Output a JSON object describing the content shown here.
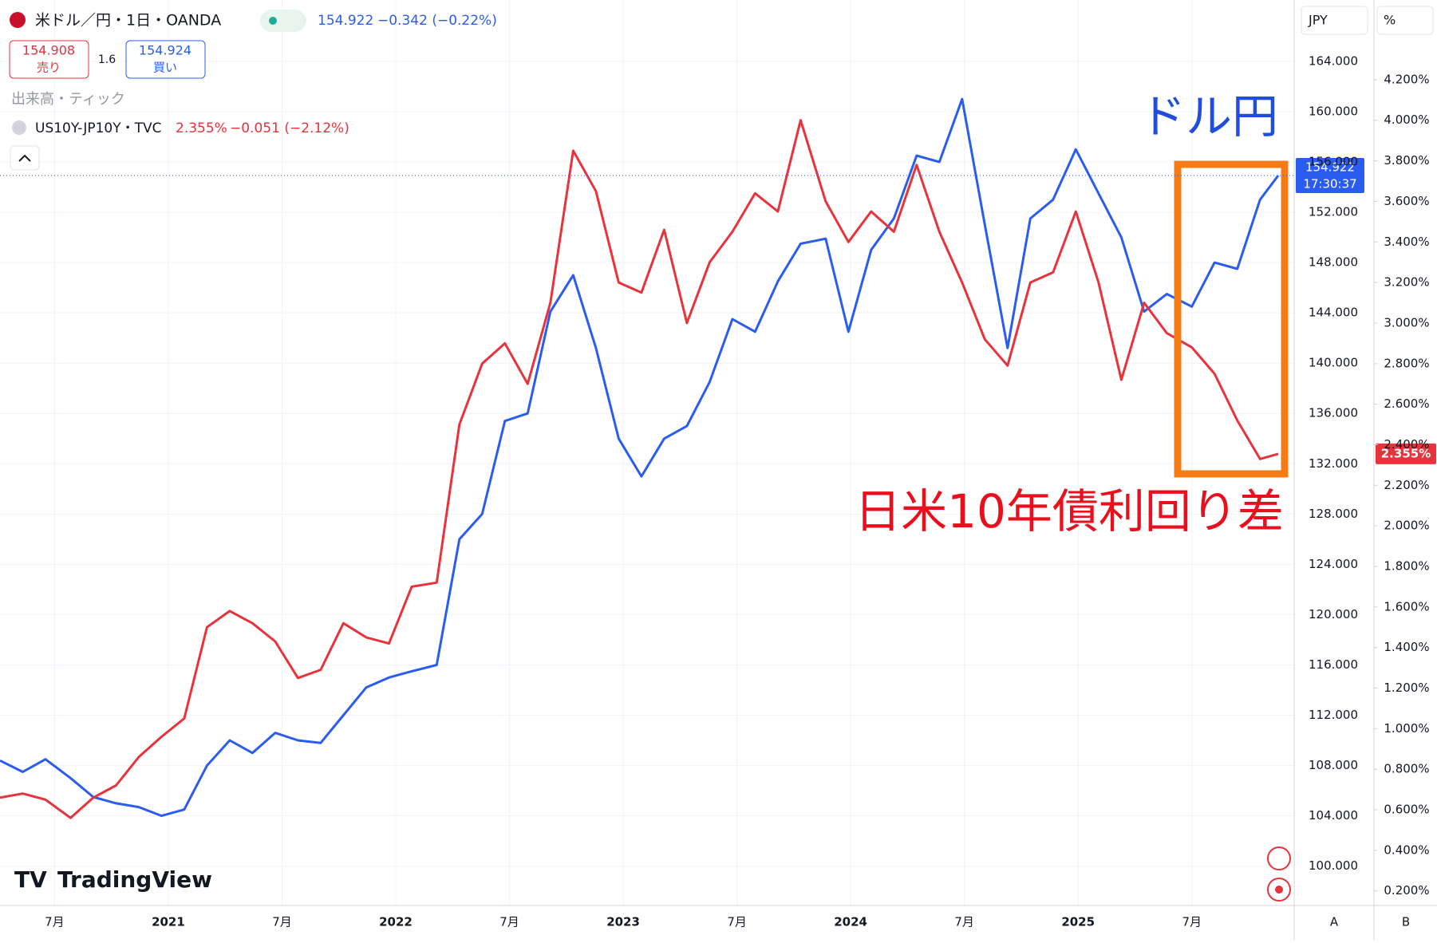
{
  "chart_data": {
    "type": "line",
    "series": [
      {
        "name": "米ドル／円・1日・OANDA",
        "color": "#2b5cf0",
        "axis": "y",
        "values": [
          108.4,
          107.5,
          108.5,
          107,
          105.5,
          105,
          104.7,
          104,
          104.5,
          108,
          110,
          109,
          110.6,
          110,
          109.8,
          112,
          114.2,
          115,
          115.5,
          116,
          126,
          128,
          135.4,
          136,
          144.1,
          147,
          141.2,
          134,
          131,
          134,
          135,
          138.5,
          143.5,
          142.5,
          146.5,
          149.5,
          149.9,
          142.5,
          149,
          151.5,
          156.5,
          156,
          161,
          151,
          141.2,
          151.5,
          153,
          157,
          153.5,
          150,
          144.1,
          145.5,
          144.5,
          148,
          147.5,
          153,
          154.922
        ]
      },
      {
        "name": "US10Y-JP10Y・TVC",
        "color": "#e8323c",
        "axis": "y2",
        "values": [
          0.66,
          0.68,
          0.65,
          0.56,
          0.66,
          0.72,
          0.86,
          0.96,
          1.05,
          1.5,
          1.58,
          1.52,
          1.43,
          1.25,
          1.29,
          1.52,
          1.45,
          1.42,
          1.7,
          1.72,
          2.5,
          2.8,
          2.9,
          2.7,
          3.1,
          3.85,
          3.65,
          3.2,
          3.15,
          3.46,
          3.0,
          3.3,
          3.45,
          3.64,
          3.55,
          4.0,
          3.6,
          3.4,
          3.55,
          3.45,
          3.78,
          3.45,
          3.2,
          2.92,
          2.79,
          3.2,
          3.25,
          3.55,
          3.2,
          2.72,
          3.1,
          2.95,
          2.88,
          2.75,
          2.52,
          2.33,
          2.355
        ]
      }
    ],
    "x": [
      2020.26,
      2020.36,
      2020.46,
      2020.57,
      2020.67,
      2020.77,
      2020.87,
      2020.97,
      2021.07,
      2021.17,
      2021.27,
      2021.37,
      2021.47,
      2021.57,
      2021.67,
      2021.77,
      2021.87,
      2021.97,
      2022.07,
      2022.18,
      2022.28,
      2022.38,
      2022.48,
      2022.58,
      2022.68,
      2022.78,
      2022.88,
      2022.98,
      2023.08,
      2023.18,
      2023.28,
      2023.38,
      2023.48,
      2023.58,
      2023.68,
      2023.78,
      2023.89,
      2023.99,
      2024.09,
      2024.19,
      2024.29,
      2024.39,
      2024.49,
      2024.59,
      2024.69,
      2024.79,
      2024.89,
      2024.99,
      2025.09,
      2025.19,
      2025.29,
      2025.39,
      2025.5,
      2025.6,
      2025.7,
      2025.8,
      2025.88
    ],
    "xlim": [
      2020.26,
      2025.95
    ],
    "xticks": [
      {
        "value": 2020.5,
        "label": "7月"
      },
      2021,
      {
        "value": 2021.5,
        "label": "7月"
      },
      2022,
      {
        "value": 2022.5,
        "label": "7月"
      },
      2023,
      {
        "value": 2023.5,
        "label": "7月"
      },
      2024,
      {
        "value": 2024.5,
        "label": "7月"
      },
      2025,
      {
        "value": 2025.5,
        "label": "7月"
      }
    ],
    "ylim": [
      96.87,
      168.88
    ],
    "yticks": [
      {
        "value": 100,
        "label": "100.000"
      },
      {
        "value": 104,
        "label": "104.000"
      },
      {
        "value": 108,
        "label": "108.000"
      },
      {
        "value": 112,
        "label": "112.000"
      },
      {
        "value": 116,
        "label": "116.000"
      },
      {
        "value": 120,
        "label": "120.000"
      },
      {
        "value": 124,
        "label": "124.000"
      },
      {
        "value": 128,
        "label": "128.000"
      },
      {
        "value": 132,
        "label": "132.000"
      },
      {
        "value": 136,
        "label": "136.000"
      },
      {
        "value": 140,
        "label": "140.000"
      },
      {
        "value": 144,
        "label": "144.000"
      },
      {
        "value": 148,
        "label": "148.000"
      },
      {
        "value": 152,
        "label": "152.000"
      },
      {
        "value": 156,
        "label": "156.000"
      },
      {
        "value": 160,
        "label": "160.000"
      },
      {
        "value": 164,
        "label": "164.000"
      }
    ],
    "y2lim": [
      0.128,
      4.593
    ],
    "y2ticks": [
      {
        "value": 0.2,
        "label": "0.200%"
      },
      {
        "value": 0.4,
        "label": "0.400%"
      },
      {
        "value": 0.6,
        "label": "0.600%"
      },
      {
        "value": 0.8,
        "label": "0.800%"
      },
      {
        "value": 1.0,
        "label": "1.000%"
      },
      {
        "value": 1.2,
        "label": "1.200%"
      },
      {
        "value": 1.4,
        "label": "1.400%"
      },
      {
        "value": 1.6,
        "label": "1.600%"
      },
      {
        "value": 1.8,
        "label": "1.800%"
      },
      {
        "value": 2.0,
        "label": "2.000%"
      },
      {
        "value": 2.2,
        "label": "2.200%"
      },
      {
        "value": 2.4,
        "label": "2.400%"
      },
      {
        "value": 2.6,
        "label": "2.600%"
      },
      {
        "value": 2.8,
        "label": "2.800%"
      },
      {
        "value": 3.0,
        "label": "3.000%"
      },
      {
        "value": 3.2,
        "label": "3.200%"
      },
      {
        "value": 3.4,
        "label": "3.400%"
      },
      {
        "value": 3.6,
        "label": "3.600%"
      },
      {
        "value": 3.8,
        "label": "3.800%"
      },
      {
        "value": 4.0,
        "label": "4.000%"
      },
      {
        "value": 4.2,
        "label": "4.200%"
      }
    ],
    "grid": true,
    "annotations": [
      "ドル円",
      "日米10年債利回り差"
    ]
  },
  "ui": {
    "last_price": "154.922",
    "change": "−0.342 (−0.22%)",
    "sell_price": "154.908",
    "sell_label": "売り",
    "spread": "1.6",
    "buy_price": "154.924",
    "buy_label": "買い",
    "volume": "出来高・ティック",
    "spread_value": "2.355%",
    "spread_change": "−0.051 (−2.12%)",
    "currency": "JPY",
    "percent": "%",
    "price_tag": "154.922",
    "countdown": "17:30:37",
    "spread_tag": "2.355%",
    "brand": "TradingView",
    "btn_a": "A",
    "btn_b": "B"
  }
}
